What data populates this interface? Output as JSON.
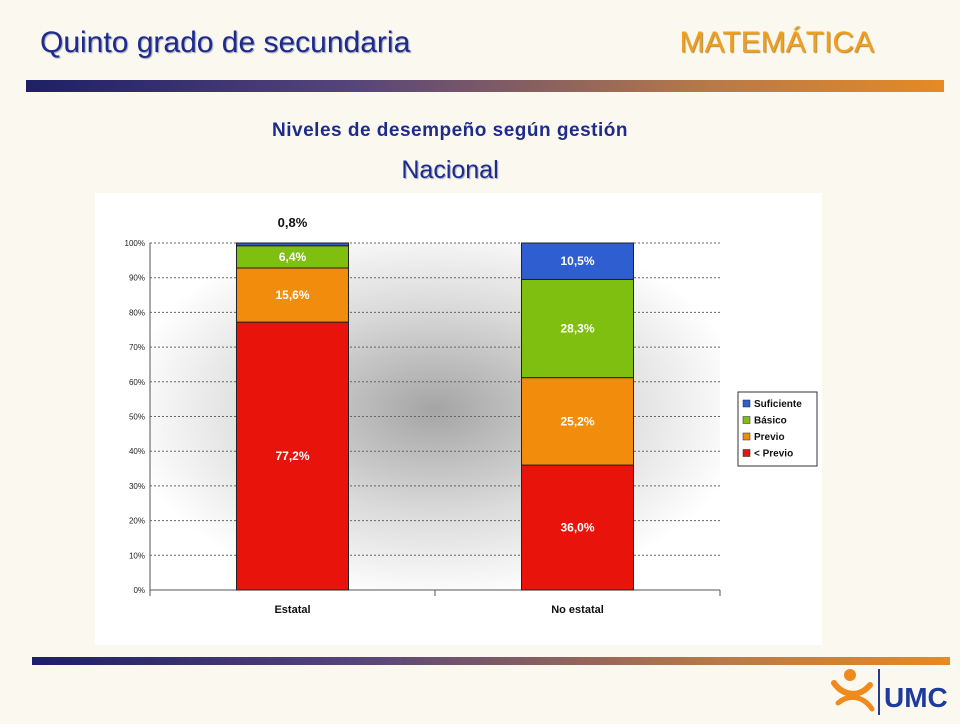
{
  "header": {
    "title": "Quinto grado de secundaria",
    "subject": "MATEMÁTICA"
  },
  "logo": {
    "text": "UMC"
  },
  "colors": {
    "title": "#1d2c8c",
    "subject": "#f0a020",
    "suficiente": "#2e5ed0",
    "basico": "#7fbf10",
    "previo": "#f28c0c",
    "menos_previo": "#e8140c"
  },
  "chart_data": {
    "type": "bar",
    "stacked": true,
    "title": "Niveles de desempeño según gestión",
    "subtitle": "Nacional",
    "categories": [
      "Estatal",
      "No estatal"
    ],
    "series": [
      {
        "name": "< Previo",
        "values": [
          77.2,
          36.0
        ],
        "labels": [
          "77,2%",
          "36,0%"
        ],
        "color": "#e8140c"
      },
      {
        "name": "Previo",
        "values": [
          15.6,
          25.2
        ],
        "labels": [
          "15,6%",
          "25,2%"
        ],
        "color": "#f28c0c"
      },
      {
        "name": "Básico",
        "values": [
          6.4,
          28.3
        ],
        "labels": [
          "6,4%",
          "28,3%"
        ],
        "color": "#7fbf10"
      },
      {
        "name": "Suficiente",
        "values": [
          0.8,
          10.5
        ],
        "labels": [
          "0,8%",
          "10,5%"
        ],
        "color": "#2e5ed0"
      }
    ],
    "legend_order": [
      "Suficiente",
      "Básico",
      "Previo",
      "< Previo"
    ],
    "ylim": [
      0,
      100
    ],
    "yticks": [
      "0%",
      "10%",
      "20%",
      "30%",
      "40%",
      "50%",
      "60%",
      "70%",
      "80%",
      "90%",
      "100%"
    ],
    "grid": true,
    "legend": "right"
  }
}
